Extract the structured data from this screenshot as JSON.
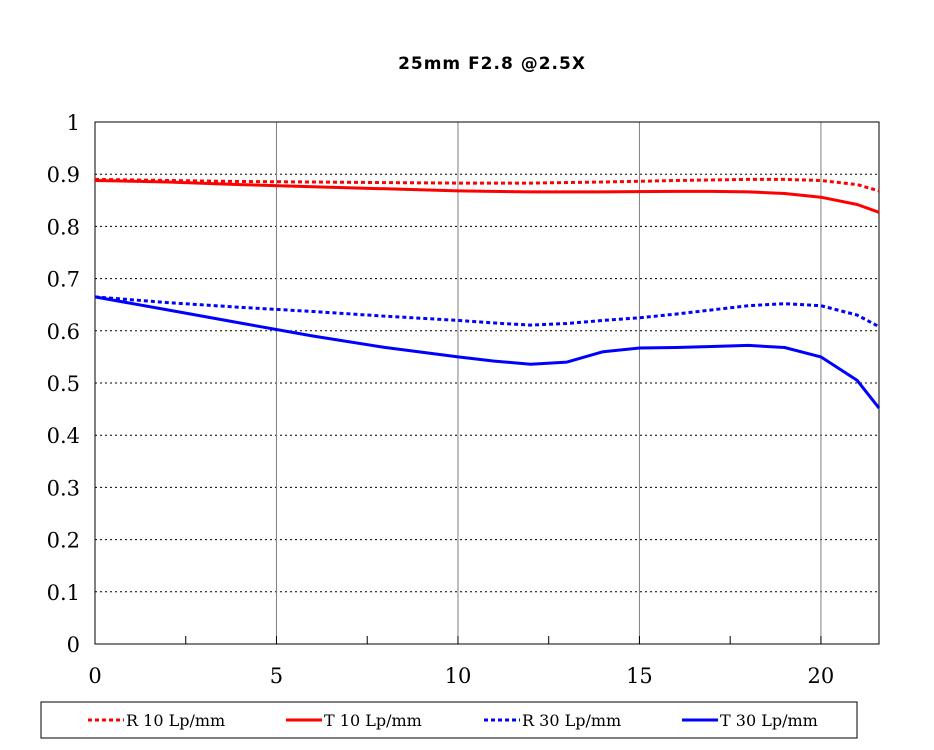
{
  "chart_data": {
    "type": "line",
    "title": "25mm F2.8  @2.5X",
    "xlabel": "",
    "ylabel": "",
    "xlim": [
      0,
      21.6
    ],
    "ylim": [
      0,
      1
    ],
    "x_ticks": [
      0,
      5,
      10,
      15,
      20
    ],
    "x_minor_ticks": [
      2.5,
      7.5,
      12.5,
      17.5
    ],
    "y_ticks": [
      0,
      0.1,
      0.2,
      0.3,
      0.4,
      0.5,
      0.6,
      0.7,
      0.8,
      0.9,
      1
    ],
    "y_tick_labels": [
      "0",
      "0.1",
      "0.2",
      "0.3",
      "0.4",
      "0.5",
      "0.6",
      "0.7",
      "0.8",
      "0.9",
      "1"
    ],
    "grid": {
      "vertical": "solid",
      "horizontal": "dotted"
    },
    "legend_position": "bottom",
    "series": [
      {
        "name": "R 10 Lp/mm",
        "color": "#ff0000",
        "style": "dotted",
        "x": [
          0,
          2,
          4,
          6,
          8,
          10,
          12,
          14,
          16,
          18,
          19,
          20,
          21,
          21.6
        ],
        "y": [
          0.89,
          0.888,
          0.886,
          0.885,
          0.884,
          0.883,
          0.883,
          0.885,
          0.888,
          0.89,
          0.89,
          0.888,
          0.88,
          0.868
        ]
      },
      {
        "name": "T 10 Lp/mm",
        "color": "#ff0000",
        "style": "solid",
        "x": [
          0,
          2,
          4,
          6,
          8,
          10,
          12,
          14,
          16,
          17,
          18,
          19,
          20,
          21,
          21.6
        ],
        "y": [
          0.888,
          0.885,
          0.88,
          0.876,
          0.872,
          0.868,
          0.866,
          0.866,
          0.867,
          0.867,
          0.866,
          0.863,
          0.856,
          0.842,
          0.827
        ]
      },
      {
        "name": "R 30 Lp/mm",
        "color": "#0000ff",
        "style": "dotted",
        "x": [
          0,
          2,
          4,
          6,
          8,
          10,
          11,
          12,
          13,
          14,
          15,
          16,
          17,
          18,
          19,
          20,
          21,
          21.6
        ],
        "y": [
          0.665,
          0.654,
          0.645,
          0.637,
          0.628,
          0.62,
          0.615,
          0.611,
          0.614,
          0.62,
          0.625,
          0.632,
          0.64,
          0.648,
          0.652,
          0.648,
          0.63,
          0.608
        ]
      },
      {
        "name": "T 30 Lp/mm",
        "color": "#0000ff",
        "style": "solid",
        "x": [
          0,
          2,
          4,
          6,
          8,
          10,
          11,
          12,
          13,
          14,
          15,
          16,
          17,
          18,
          19,
          20,
          21,
          21.6
        ],
        "y": [
          0.665,
          0.64,
          0.615,
          0.59,
          0.568,
          0.55,
          0.542,
          0.536,
          0.54,
          0.56,
          0.567,
          0.568,
          0.57,
          0.572,
          0.568,
          0.55,
          0.505,
          0.452
        ]
      }
    ]
  }
}
